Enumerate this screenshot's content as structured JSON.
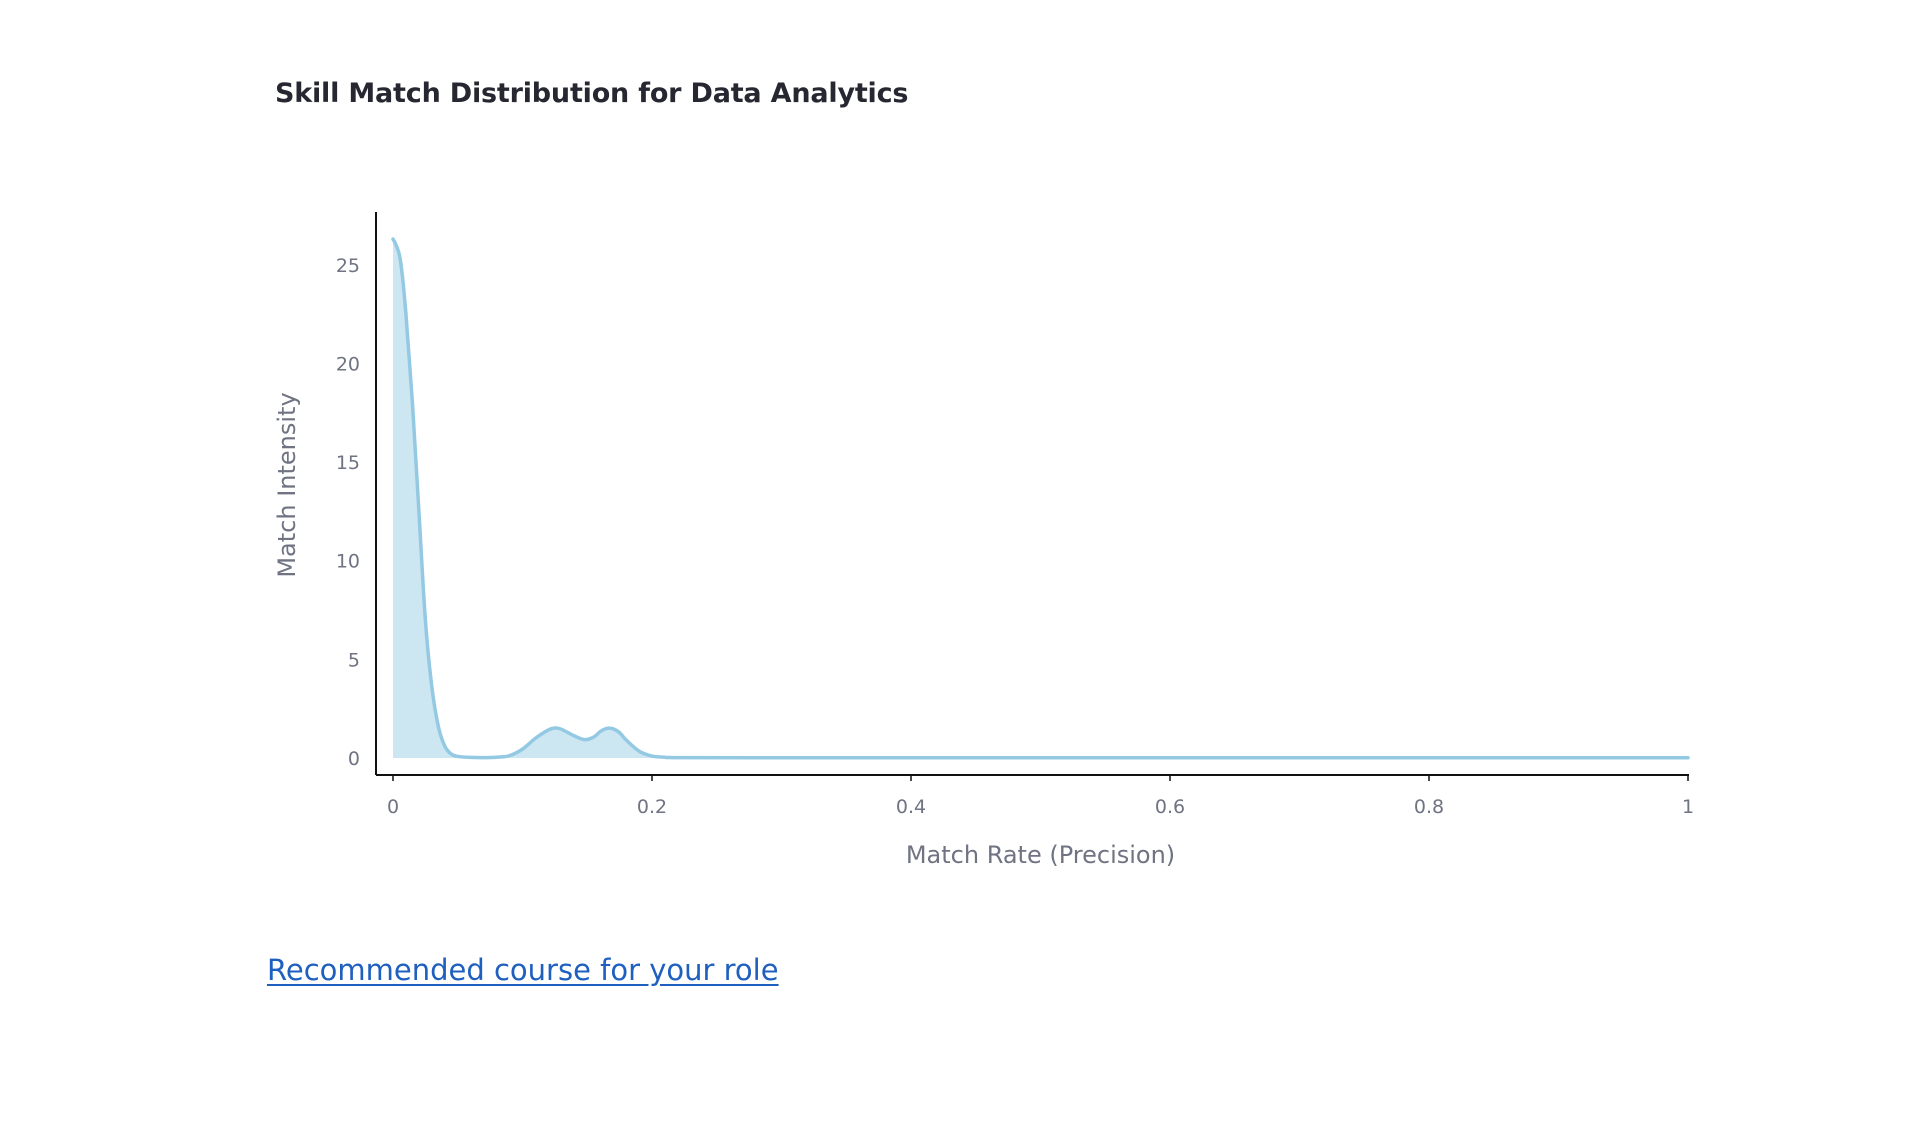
{
  "chart_data": {
    "type": "area",
    "title": "Skill Match Distribution for Data Analytics",
    "xlabel": "Match Rate (Precision)",
    "ylabel": "Match Intensity",
    "xlim": [
      0,
      1
    ],
    "ylim": [
      0,
      26.5
    ],
    "x_ticks": [
      0,
      0.2,
      0.4,
      0.6,
      0.8,
      1
    ],
    "x_tick_labels": [
      "0",
      "0.2",
      "0.4",
      "0.6",
      "0.8",
      "1"
    ],
    "y_ticks": [
      0,
      5,
      10,
      15,
      20,
      25
    ],
    "y_tick_labels": [
      "0",
      "5",
      "10",
      "15",
      "20",
      "25"
    ],
    "grid": false,
    "line_color": "#93c9e3",
    "fill_color": "#cce6f2",
    "series": [
      {
        "x": [
          0,
          0.003,
          0.006,
          0.01,
          0.015,
          0.02,
          0.025,
          0.03,
          0.035,
          0.04,
          0.045,
          0.05,
          0.06,
          0.07,
          0.08,
          0.09,
          0.1,
          0.11,
          0.12,
          0.125,
          0.13,
          0.14,
          0.148,
          0.155,
          0.16,
          0.165,
          0.17,
          0.175,
          0.18,
          0.19,
          0.2,
          0.21,
          0.22,
          0.3,
          0.4,
          0.5,
          0.6,
          0.7,
          0.8,
          0.9,
          1
        ],
        "y": [
          26.3,
          25.9,
          25.1,
          22.5,
          18.0,
          12.5,
          7.0,
          3.6,
          1.6,
          0.6,
          0.2,
          0.08,
          0.03,
          0.02,
          0.04,
          0.12,
          0.45,
          1.0,
          1.42,
          1.52,
          1.46,
          1.12,
          0.93,
          1.06,
          1.34,
          1.5,
          1.48,
          1.28,
          0.92,
          0.35,
          0.1,
          0.04,
          0.02,
          0.01,
          0.01,
          0.01,
          0.01,
          0.01,
          0.01,
          0.01,
          0.01
        ]
      }
    ]
  },
  "link": {
    "label": "Recommended course for your role"
  }
}
